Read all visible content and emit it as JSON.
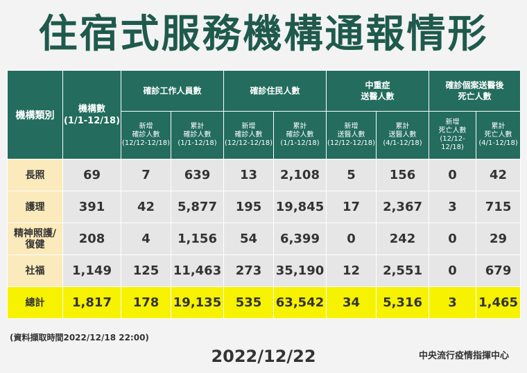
{
  "title": "住宿式服務機構通報情形",
  "table": {
    "header": {
      "category": "機構類別",
      "count": [
        "機構數",
        "(1/1-12/18)"
      ],
      "groups": [
        [
          "確診工作人員數"
        ],
        [
          "確診住民人數"
        ],
        [
          "中重症",
          "送醫人數"
        ],
        [
          "確診個案送醫後",
          "死亡人數"
        ]
      ],
      "subs": [
        [
          "新增",
          "確診人數",
          "(12/12-12/18)"
        ],
        [
          "累計",
          "確診人數",
          "(1/1-12/18)"
        ],
        [
          "新增",
          "確診人數",
          "(12/12-12/18)"
        ],
        [
          "累計",
          "確診人數",
          "(1/1-12/18)"
        ],
        [
          "新增",
          "送醫人數",
          "(12/12-12/18)"
        ],
        [
          "累計",
          "送醫人數",
          "(4/1-12/18)"
        ],
        [
          "新增",
          "死亡人數",
          "(12/12-12/18)"
        ],
        [
          "累計",
          "死亡人數",
          "(4/1-12/18)"
        ]
      ]
    },
    "rows": [
      {
        "label": [
          "長照"
        ],
        "values": [
          "69",
          "7",
          "639",
          "13",
          "2,108",
          "5",
          "156",
          "0",
          "42"
        ]
      },
      {
        "label": [
          "護理"
        ],
        "values": [
          "391",
          "42",
          "5,877",
          "195",
          "19,845",
          "17",
          "2,367",
          "3",
          "715"
        ]
      },
      {
        "label": [
          "精神照護/",
          "復健"
        ],
        "values": [
          "208",
          "4",
          "1,156",
          "54",
          "6,399",
          "0",
          "242",
          "0",
          "29"
        ]
      },
      {
        "label": [
          "社福"
        ],
        "values": [
          "1,149",
          "125",
          "11,463",
          "273",
          "35,190",
          "12",
          "2,551",
          "0",
          "679"
        ]
      }
    ],
    "total": {
      "label": [
        "總計"
      ],
      "values": [
        "1,817",
        "178",
        "19,135",
        "535",
        "63,542",
        "34",
        "5,316",
        "3",
        "1,465"
      ]
    }
  },
  "footnote": "(資料擷取時間2022/12/18  22:00)",
  "date": "2022/12/22",
  "organization": "中央流行疫情指揮中心"
}
